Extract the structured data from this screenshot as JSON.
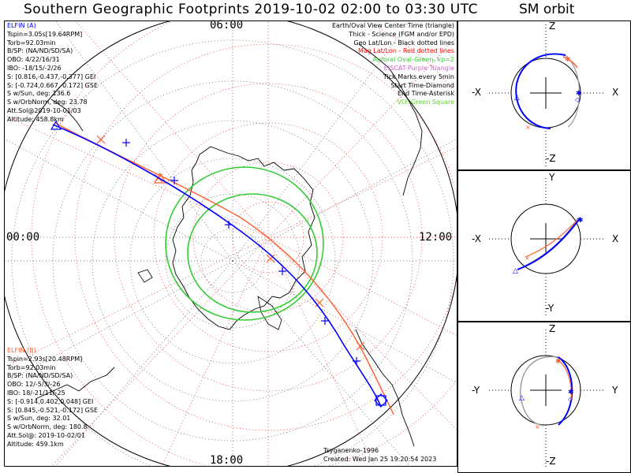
{
  "title": "Southern Geographic Footprints 2019-10-02 02:00 to 03:30 UTC",
  "orbit_title": "SM orbit",
  "hours": {
    "top": "06:00",
    "left": "00:00",
    "right": "12:00",
    "bottom": "18:00"
  },
  "elfin_a": {
    "lines": [
      "ELFIN (A)",
      "Tspin=3.05s[19.64RPM]",
      "Torb=92.03min",
      "B/SP: (NA/ND/SD/SA)",
      "OBO: 4/22/16/31",
      "IBO: -18/15/-2/26",
      "S: [0.816,-0.437,-0.377] GEI",
      "S: [-0.724,0.667,-0.172] GSE",
      "S w/Sun, deg: 136.6",
      "S w/OrbNorm, deg: 23.78",
      "Att.Sol@2019-10-01/03",
      "Altitude: 458.8km"
    ],
    "color": "#0000ff"
  },
  "elfin_b": {
    "lines": [
      "ELFIN (B)",
      "Tspin=2.93s[20.48RPM]",
      "Torb=92.03min",
      "B/SP: (NA/ND/SD/SA)",
      "OBO: 12/-5/3/-26",
      "IBO: 18/-21/11/-25",
      "S: [-0.914,0.402,0.048] GEI",
      "S: [0.845,-0.521,-0.172] GSE",
      "S w/Sun, deg: 32.01",
      "S w/OrbNorm, deg: 180.8",
      "Att.Sol@: 2019-10-02/01",
      "Altitude: 459.1km"
    ],
    "color": "#ff6030"
  },
  "legend": [
    {
      "text": "Earth/Oval View Center Time (triangle)",
      "color": "#000000"
    },
    {
      "text": "Thick - Science (FGM and/or EPD)",
      "color": "#000000"
    },
    {
      "text": "Geo Lat/Lon - Black dotted lines",
      "color": "#000000"
    },
    {
      "text": "Mag Lat/Lon - Red dotted lines",
      "color": "#ff0000"
    },
    {
      "text": "Auroral Oval-Green, kp=2",
      "color": "#33cc33"
    },
    {
      "text": "EISCAT-Purple Triangle",
      "color": "#cc66cc"
    },
    {
      "text": "Tick Marks every 5min",
      "color": "#000000"
    },
    {
      "text": "Start Time-Diamond",
      "color": "#000000"
    },
    {
      "text": "End Time-Asterisk",
      "color": "#000000"
    },
    {
      "text": "VLF-Green Square",
      "color": "#66cc33"
    }
  ],
  "credits": {
    "model": "Tsyganenko-1996",
    "created": "Created: Wed Jan 25 19:20:54 2023"
  },
  "panels": [
    {
      "top": "Z",
      "bottom": "-Z",
      "left": "-X",
      "right": "X"
    },
    {
      "top": "Y",
      "bottom": "-Y",
      "left": "-X",
      "right": "X"
    },
    {
      "top": "Z",
      "bottom": "-Z",
      "left": "-Y",
      "right": "Y"
    }
  ],
  "colors": {
    "elfin_a": "#0000ff",
    "elfin_b": "#ff6030",
    "aurora": "#33cc33",
    "mag_grid": "#dd2222",
    "orbit_ghost": "#999999"
  }
}
